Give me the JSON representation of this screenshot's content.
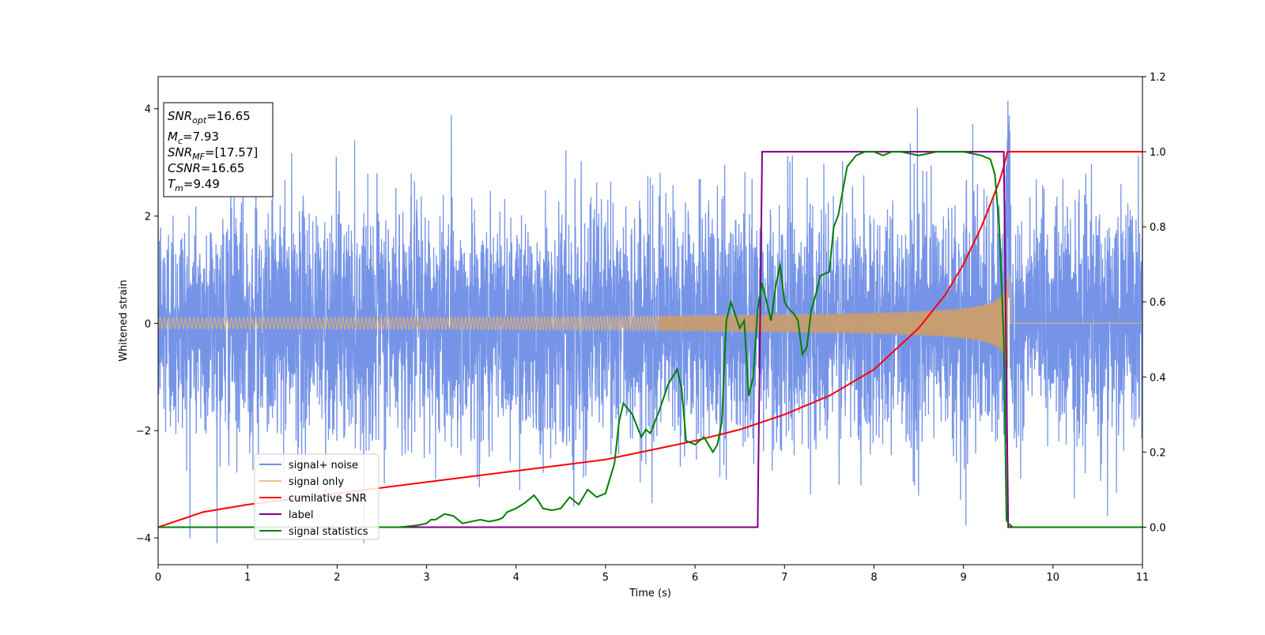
{
  "chart_data": {
    "type": "line",
    "xlabel": "Time (s)",
    "ylabel": "Whitened strain",
    "xlim": [
      0,
      11
    ],
    "ylim": [
      -4.5,
      4.6
    ],
    "y2lim": [
      -0.1,
      1.2
    ],
    "xticks": [
      "0",
      "1",
      "2",
      "3",
      "4",
      "5",
      "6",
      "7",
      "8",
      "9",
      "10",
      "11"
    ],
    "yticks": [
      "−4",
      "−2",
      "0",
      "2",
      "4"
    ],
    "y2ticks": [
      "0.0",
      "0.2",
      "0.4",
      "0.6",
      "0.8",
      "1.0",
      "1.2"
    ],
    "grid": false,
    "legend_position": "lower-left",
    "info_box": {
      "lines": [
        {
          "name": "SNR",
          "sub": "opt",
          "value": "=16.65"
        },
        {
          "name": "M",
          "sub": "c",
          "value": "=7.93"
        },
        {
          "name": "SNR",
          "sub": "MF",
          "value": "=[17.57]"
        },
        {
          "name": "CSNR",
          "sub": "",
          "value": "=16.65"
        },
        {
          "name": "T",
          "sub": "m",
          "value": "=9.49"
        }
      ]
    },
    "series": [
      {
        "name": "signal+ noise",
        "color": "#6f8ee6",
        "axis": "left",
        "kind": "noise",
        "description_only": true
      },
      {
        "name": "signal only",
        "color": "#e8b36b",
        "axis": "left",
        "kind": "chirp",
        "merger_time": 9.49
      },
      {
        "name": "cumilative SNR",
        "color": "#ff0000",
        "axis": "right",
        "x": [
          0,
          0.5,
          1,
          2,
          3,
          4,
          5,
          6,
          6.5,
          7,
          7.5,
          8,
          8.5,
          8.8,
          9.0,
          9.2,
          9.3,
          9.4,
          9.45,
          9.49,
          9.5,
          11
        ],
        "y": [
          0.0,
          0.04,
          0.06,
          0.09,
          0.12,
          0.15,
          0.18,
          0.23,
          0.26,
          0.3,
          0.35,
          0.42,
          0.53,
          0.62,
          0.7,
          0.8,
          0.86,
          0.92,
          0.96,
          1.0,
          1.0,
          1.0
        ]
      },
      {
        "name": "label",
        "color": "#800080",
        "axis": "right",
        "x": [
          0,
          6.7,
          6.75,
          9.45,
          9.5,
          11
        ],
        "y": [
          0,
          0,
          1,
          1,
          0,
          0
        ]
      },
      {
        "name": "signal statistics",
        "color": "#008000",
        "axis": "right",
        "x": [
          0,
          2.7,
          2.9,
          3.0,
          3.05,
          3.1,
          3.2,
          3.3,
          3.4,
          3.5,
          3.6,
          3.7,
          3.8,
          3.85,
          3.9,
          4.0,
          4.1,
          4.2,
          4.25,
          4.3,
          4.4,
          4.5,
          4.6,
          4.7,
          4.8,
          4.9,
          5.0,
          5.1,
          5.15,
          5.2,
          5.3,
          5.35,
          5.4,
          5.45,
          5.5,
          5.6,
          5.7,
          5.8,
          5.85,
          5.9,
          6.0,
          6.1,
          6.2,
          6.25,
          6.3,
          6.35,
          6.4,
          6.5,
          6.55,
          6.6,
          6.65,
          6.7,
          6.75,
          6.8,
          6.85,
          6.9,
          6.95,
          7.0,
          7.05,
          7.1,
          7.15,
          7.2,
          7.25,
          7.3,
          7.35,
          7.4,
          7.5,
          7.55,
          7.6,
          7.7,
          7.8,
          7.9,
          8.0,
          8.1,
          8.2,
          8.3,
          8.5,
          8.7,
          8.9,
          9.0,
          9.2,
          9.3,
          9.35,
          9.4,
          9.45,
          9.48,
          9.5,
          9.55,
          11
        ],
        "y": [
          0,
          0,
          0.005,
          0.01,
          0.02,
          0.02,
          0.035,
          0.03,
          0.01,
          0.015,
          0.02,
          0.015,
          0.02,
          0.025,
          0.04,
          0.05,
          0.065,
          0.085,
          0.07,
          0.05,
          0.045,
          0.05,
          0.08,
          0.06,
          0.1,
          0.08,
          0.09,
          0.17,
          0.28,
          0.33,
          0.3,
          0.27,
          0.24,
          0.26,
          0.25,
          0.31,
          0.38,
          0.42,
          0.37,
          0.23,
          0.22,
          0.24,
          0.2,
          0.22,
          0.28,
          0.55,
          0.6,
          0.53,
          0.55,
          0.35,
          0.4,
          0.58,
          0.65,
          0.6,
          0.55,
          0.64,
          0.7,
          0.6,
          0.58,
          0.57,
          0.55,
          0.46,
          0.48,
          0.58,
          0.62,
          0.67,
          0.68,
          0.8,
          0.83,
          0.96,
          0.99,
          1.0,
          1.0,
          0.99,
          1.0,
          1.0,
          0.99,
          1.0,
          1.0,
          1.0,
          0.99,
          0.98,
          0.94,
          0.8,
          0.5,
          0.02,
          0.01,
          0.0,
          0.0
        ]
      }
    ]
  }
}
